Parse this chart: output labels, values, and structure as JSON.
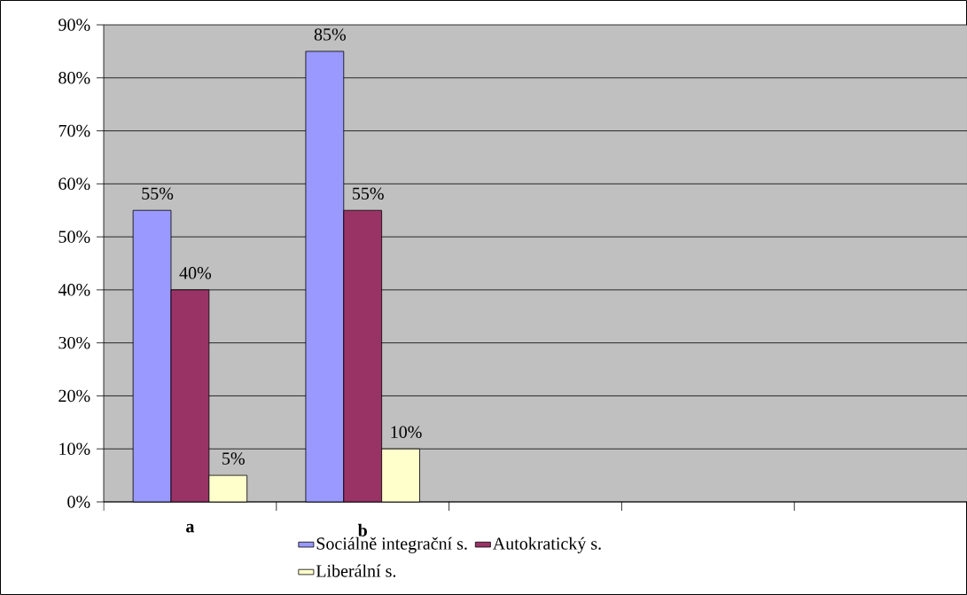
{
  "chart_data": {
    "type": "bar",
    "categories": [
      "a",
      "b",
      null,
      null,
      null
    ],
    "series": [
      {
        "name": "Sociálně integrační s.",
        "color": "#9999ff",
        "values": [
          55,
          85,
          null,
          null,
          null
        ],
        "value_labels": [
          "55%",
          "85%",
          null,
          null,
          null
        ]
      },
      {
        "name": "Autokratický s.",
        "color": "#993366",
        "values": [
          40,
          55,
          null,
          null,
          null
        ],
        "value_labels": [
          "40%",
          "55%",
          null,
          null,
          null
        ]
      },
      {
        "name": "Liberální s.",
        "color": "#ffffcc",
        "values": [
          5,
          10,
          null,
          null,
          null
        ],
        "value_labels": [
          "5%",
          "10%",
          null,
          null,
          null
        ]
      }
    ],
    "ylim": [
      0,
      90
    ],
    "yticks": [
      {
        "value": 0,
        "label": "0%"
      },
      {
        "value": 10,
        "label": "10%"
      },
      {
        "value": 20,
        "label": "20%"
      },
      {
        "value": 30,
        "label": "30%"
      },
      {
        "value": 40,
        "label": "40%"
      },
      {
        "value": 50,
        "label": "50%"
      },
      {
        "value": 60,
        "label": "60%"
      },
      {
        "value": 70,
        "label": "70%"
      },
      {
        "value": 80,
        "label": "80%"
      },
      {
        "value": 90,
        "label": "90%"
      }
    ],
    "grid": "y",
    "legend": "bottom"
  }
}
